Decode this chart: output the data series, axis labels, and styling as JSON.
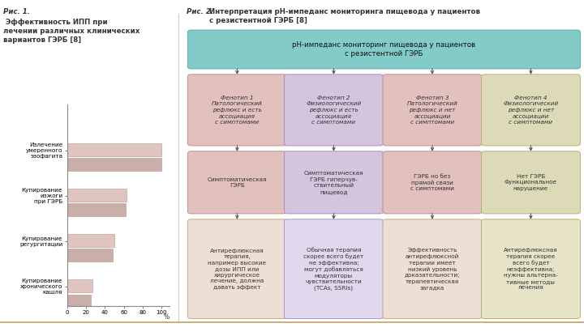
{
  "fig_width": 7.2,
  "fig_height": 4.15,
  "dpi": 100,
  "bg_color": "#ffffff",
  "fig1_title_italic": "Рис. 1.",
  "fig1_title_bold": " Эффективность ИПП при\nлечении различных клинических\nвариантов ГЭРБ [8]",
  "bar_categories": [
    "Излечение\nумеренного\nэзофагита",
    "Купирование\nизжоги\nпри ГЭРБ",
    "Купирование\nрегургитации",
    "Купирование\nхронического\nкашля"
  ],
  "bar_values_1": [
    100,
    100
  ],
  "bar_values_2": [
    63,
    62
  ],
  "bar_values_3": [
    50,
    48
  ],
  "bar_values_4": [
    27,
    25
  ],
  "bar_color_light": "#dfc5be",
  "bar_color_dark": "#c9aeaa",
  "xlabel": "%",
  "xticks": [
    0,
    20,
    40,
    60,
    80,
    100
  ],
  "fig2_title_italic": "Рис. 2.",
  "fig2_title_bold": "Интерпретация рН-импеданс мониторинга пищевода у пациентов\nс резистентной ГЭРБ [8]",
  "top_box_text": "рН-импеданс мониторинг пищевода у пациентов\nс резистентной ГЭРБ",
  "top_box_color": "#82cbc9",
  "top_box_border": "#5aabaa",
  "phenotype_boxes": [
    {
      "title": "Фенотип 1",
      "text": "Патологический\nрефлюкс и есть\nассоциация\nс симптомами",
      "bg": "#e2c0be",
      "border": "#c09090"
    },
    {
      "title": "Фенотип 2",
      "text": "Физиологический\nрефлюкс и есть\nассоциация\nс симптомами",
      "bg": "#d4c4de",
      "border": "#a890c0"
    },
    {
      "title": "Фенотип 3",
      "text": "Патологический\nрефлюкс и нет\nассоциации\nс симптомами",
      "bg": "#e2c0be",
      "border": "#c09090"
    },
    {
      "title": "Фенотип 4",
      "text": "Физиологический\nрефлюкс и нет\nассоциации\nс симптомами",
      "bg": "#dddab8",
      "border": "#b8b080"
    }
  ],
  "middle_boxes": [
    {
      "text": "Симптоматическая\nГЭРБ",
      "bg": "#e2c0be",
      "border": "#c09090"
    },
    {
      "text": "Симптоматическая\nГЭРБ гиперчув-\nствительный\nпищевод",
      "bg": "#d4c4de",
      "border": "#a890c0"
    },
    {
      "text": "ГЭРБ но без\nпрямой связи\nс симптомами",
      "bg": "#e2c0be",
      "border": "#c09090"
    },
    {
      "text": "Нет ГЭРБ\nФункциональное\nнарушение",
      "bg": "#dddab8",
      "border": "#b8b080"
    }
  ],
  "bottom_boxes": [
    {
      "text": "Антирефлюксная\nтерапия,\nнапример высокие\nдозы ИПП или\nхирургическое\nлечение, должна\nдавать эффект",
      "bg": "#eddfd4",
      "border": "#c8a888"
    },
    {
      "text": "Обычная терапия\nскорее всего будет\nне эффективна;\nмогут добавляться\nмодуляторы\nчувствительности\n(TCAs, SSRIs)",
      "bg": "#e0d8ec",
      "border": "#a898c8"
    },
    {
      "text": "Эффективность\nантирефлюксной\nтерапии имеет\nнизкий уровень\nдоказательности;\nтерапевтическая\nзагадка",
      "bg": "#eddfd4",
      "border": "#c8a888"
    },
    {
      "text": "Антирефлюксная\nтерапия скорее\nвсего будет\nнеэффективна;\nнужны альтерна-\nтивные методы\nлечения",
      "bg": "#e8e4c8",
      "border": "#b8b070"
    }
  ],
  "arrow_color": "#555555",
  "divider_color": "#c8a060",
  "text_color": "#333333"
}
